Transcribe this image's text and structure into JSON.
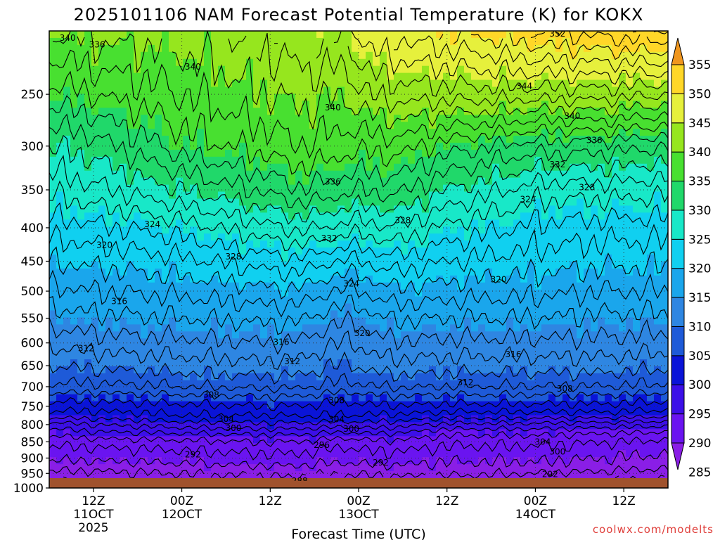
{
  "chart_data": {
    "type": "heatmap",
    "title": "2025101106 NAM Forecast Potential Temperature (K) for KOKX",
    "xlabel": "Forecast Time (UTC)",
    "ylabel": "",
    "credit": "coolwx.com/modelts",
    "y_axis": {
      "scale": "log-pressure",
      "range_hPa": [
        1000,
        200
      ],
      "tick_labels": [
        "250",
        "300",
        "350",
        "400",
        "450",
        "500",
        "550",
        "600",
        "650",
        "700",
        "750",
        "800",
        "850",
        "900",
        "950",
        "1000"
      ]
    },
    "x_axis": {
      "range_hours": [
        -6,
        78
      ],
      "ticks": [
        {
          "hour": 0,
          "lines": [
            "12Z",
            "11OCT",
            "2025"
          ]
        },
        {
          "hour": 12,
          "lines": [
            "00Z",
            "12OCT"
          ]
        },
        {
          "hour": 24,
          "lines": [
            "12Z"
          ]
        },
        {
          "hour": 36,
          "lines": [
            "00Z",
            "13OCT"
          ]
        },
        {
          "hour": 48,
          "lines": [
            "12Z"
          ]
        },
        {
          "hour": 60,
          "lines": [
            "00Z",
            "14OCT"
          ]
        },
        {
          "hour": 72,
          "lines": [
            "12Z"
          ]
        }
      ]
    },
    "colorbar": {
      "levels": [
        285,
        290,
        295,
        300,
        305,
        310,
        315,
        320,
        325,
        330,
        335,
        340,
        345,
        350,
        355
      ],
      "labels": [
        "355",
        "350",
        "345",
        "340",
        "335",
        "330",
        "325",
        "320",
        "315",
        "310",
        "305",
        "300",
        "295",
        "290",
        "285"
      ],
      "colors": [
        "#8a1ee6",
        "#6a14f0",
        "#3c0fe8",
        "#0a14d8",
        "#1e5ad8",
        "#2e86e2",
        "#1aa6ec",
        "#10d0f0",
        "#18e8c8",
        "#20d86a",
        "#48e030",
        "#96e61e",
        "#e6f03c",
        "#ffd728",
        "#f0961e"
      ]
    },
    "profile_hPa": [
      1000,
      975,
      950,
      925,
      900,
      875,
      850,
      825,
      800,
      775,
      750,
      725,
      700,
      650,
      600,
      550,
      500,
      450,
      400,
      350,
      300,
      250,
      200
    ],
    "dip_profile_K": [
      -0.5,
      -0.5,
      -1,
      -1.5,
      -2,
      -2.5,
      -3,
      -2.5,
      -1.5,
      -1,
      -2,
      -3,
      -3.5,
      -4.5,
      -6,
      -7,
      -8,
      -9,
      -10,
      -10,
      -8,
      -5,
      -2
    ],
    "columns": [
      {
        "hour": -6,
        "theta_K": [
          283,
          286,
          287.5,
          289,
          290.5,
          291.5,
          292.5,
          294.5,
          297,
          301,
          303,
          305,
          307.5,
          310,
          312.5,
          315,
          317.5,
          320,
          323,
          326.5,
          330,
          335,
          340
        ]
      },
      {
        "hour": 0,
        "theta_K": [
          284,
          286.5,
          287.5,
          289,
          290.5,
          291.5,
          293,
          295.5,
          298,
          301,
          303,
          305,
          307.5,
          310.5,
          313,
          315.5,
          318,
          320.5,
          323.5,
          327.5,
          331,
          336,
          341
        ]
      },
      {
        "hour": 12,
        "theta_K": [
          285,
          287,
          288,
          289.5,
          291,
          292,
          293.5,
          296,
          299,
          302,
          303.5,
          305.5,
          308,
          311,
          313.5,
          316,
          318.5,
          321.5,
          325,
          330,
          335,
          338,
          341
        ]
      },
      {
        "hour": 24,
        "theta_K": [
          286,
          287.5,
          288.5,
          290,
          291.5,
          292.5,
          294,
          296.5,
          299.5,
          302,
          304,
          306,
          308.5,
          311.5,
          314,
          316.5,
          319.5,
          323,
          327.5,
          332.5,
          337,
          340,
          343
        ]
      },
      {
        "hour": 33,
        "theta_K": [
          286,
          287.5,
          288.5,
          290,
          291.5,
          292.5,
          294,
          296.5,
          299.5,
          302.5,
          304,
          306,
          308.5,
          311.5,
          314,
          317,
          320.5,
          325,
          331,
          336.5,
          340,
          342,
          345
        ]
      },
      {
        "hour": 38,
        "theta_K": [
          285.5,
          287,
          288.5,
          290,
          291.5,
          292.5,
          294,
          296.5,
          299.5,
          302,
          304,
          306,
          308.5,
          311.5,
          314,
          316.5,
          320,
          324,
          329,
          334,
          338,
          343,
          348
        ]
      },
      {
        "hour": 48,
        "theta_K": [
          285,
          287,
          288.5,
          289.5,
          290.5,
          291.5,
          292.5,
          294.5,
          297.5,
          301,
          303.5,
          305.5,
          308,
          311,
          313.5,
          316,
          319,
          322,
          325.5,
          330,
          335,
          343,
          350
        ]
      },
      {
        "hour": 60,
        "theta_K": [
          284.5,
          286.5,
          288,
          289.5,
          290.5,
          291.5,
          292.5,
          294.5,
          297.5,
          301,
          303.5,
          305.5,
          308,
          311,
          313.5,
          316,
          318.5,
          321,
          323.5,
          327,
          333,
          343,
          352
        ]
      },
      {
        "hour": 70,
        "theta_K": [
          284,
          286,
          287.5,
          289,
          290,
          291,
          292,
          294,
          297,
          301,
          303.5,
          305.5,
          308,
          311,
          313.5,
          315.5,
          318,
          320.5,
          323,
          327,
          333,
          343,
          353
        ]
      },
      {
        "hour": 78,
        "theta_K": [
          283,
          285.5,
          287,
          288.5,
          289.5,
          290.5,
          291.5,
          293.5,
          296.5,
          300.5,
          303,
          305,
          307.5,
          310.5,
          313,
          315.5,
          318,
          320.5,
          323,
          326.5,
          332,
          342,
          354
        ]
      }
    ],
    "contours": {
      "interval_K": 2,
      "min_K": 286,
      "max_K": 354,
      "color": "#000000"
    },
    "contour_labels": [
      {
        "text": "340",
        "hour": -3.5,
        "hPa": 205
      },
      {
        "text": "336",
        "hour": 0.5,
        "hPa": 210
      },
      {
        "text": "340",
        "hour": 13.5,
        "hPa": 227
      },
      {
        "text": "340",
        "hour": 32.5,
        "hPa": 262
      },
      {
        "text": "352",
        "hour": 63,
        "hPa": 202
      },
      {
        "text": "344",
        "hour": 58.5,
        "hPa": 243
      },
      {
        "text": "340",
        "hour": 65,
        "hPa": 270
      },
      {
        "text": "336",
        "hour": 68,
        "hPa": 294
      },
      {
        "text": "332",
        "hour": 63,
        "hPa": 320
      },
      {
        "text": "336",
        "hour": 32.5,
        "hPa": 340
      },
      {
        "text": "328",
        "hour": 67,
        "hPa": 347
      },
      {
        "text": "324",
        "hour": 59,
        "hPa": 362
      },
      {
        "text": "332",
        "hour": 32,
        "hPa": 415
      },
      {
        "text": "328",
        "hour": 42,
        "hPa": 390
      },
      {
        "text": "324",
        "hour": 8,
        "hPa": 395
      },
      {
        "text": "328",
        "hour": 19,
        "hPa": 443
      },
      {
        "text": "320",
        "hour": 1.5,
        "hPa": 425
      },
      {
        "text": "324",
        "hour": 35,
        "hPa": 487
      },
      {
        "text": "320",
        "hour": 55,
        "hPa": 480
      },
      {
        "text": "316",
        "hour": 3.5,
        "hPa": 518
      },
      {
        "text": "320",
        "hour": 36.5,
        "hPa": 580
      },
      {
        "text": "316",
        "hour": 25.5,
        "hPa": 598
      },
      {
        "text": "312",
        "hour": -1,
        "hPa": 612
      },
      {
        "text": "316",
        "hour": 57,
        "hPa": 625
      },
      {
        "text": "312",
        "hour": 27,
        "hPa": 640
      },
      {
        "text": "312",
        "hour": 50.5,
        "hPa": 690
      },
      {
        "text": "308",
        "hour": 16,
        "hPa": 720
      },
      {
        "text": "308",
        "hour": 33,
        "hPa": 735
      },
      {
        "text": "308",
        "hour": 64,
        "hPa": 705
      },
      {
        "text": "304",
        "hour": 33,
        "hPa": 786
      },
      {
        "text": "304",
        "hour": 18,
        "hPa": 785
      },
      {
        "text": "300",
        "hour": 19,
        "hPa": 810
      },
      {
        "text": "300",
        "hour": 35,
        "hPa": 812
      },
      {
        "text": "296",
        "hour": 31,
        "hPa": 860
      },
      {
        "text": "304",
        "hour": 61,
        "hPa": 850
      },
      {
        "text": "300",
        "hour": 63,
        "hPa": 880
      },
      {
        "text": "292",
        "hour": 13.5,
        "hPa": 889
      },
      {
        "text": "292",
        "hour": 39,
        "hPa": 915
      },
      {
        "text": "292",
        "hour": 62,
        "hPa": 953
      },
      {
        "text": "288",
        "hour": 28,
        "hPa": 975
      }
    ],
    "ground_color": "#a0522d"
  }
}
